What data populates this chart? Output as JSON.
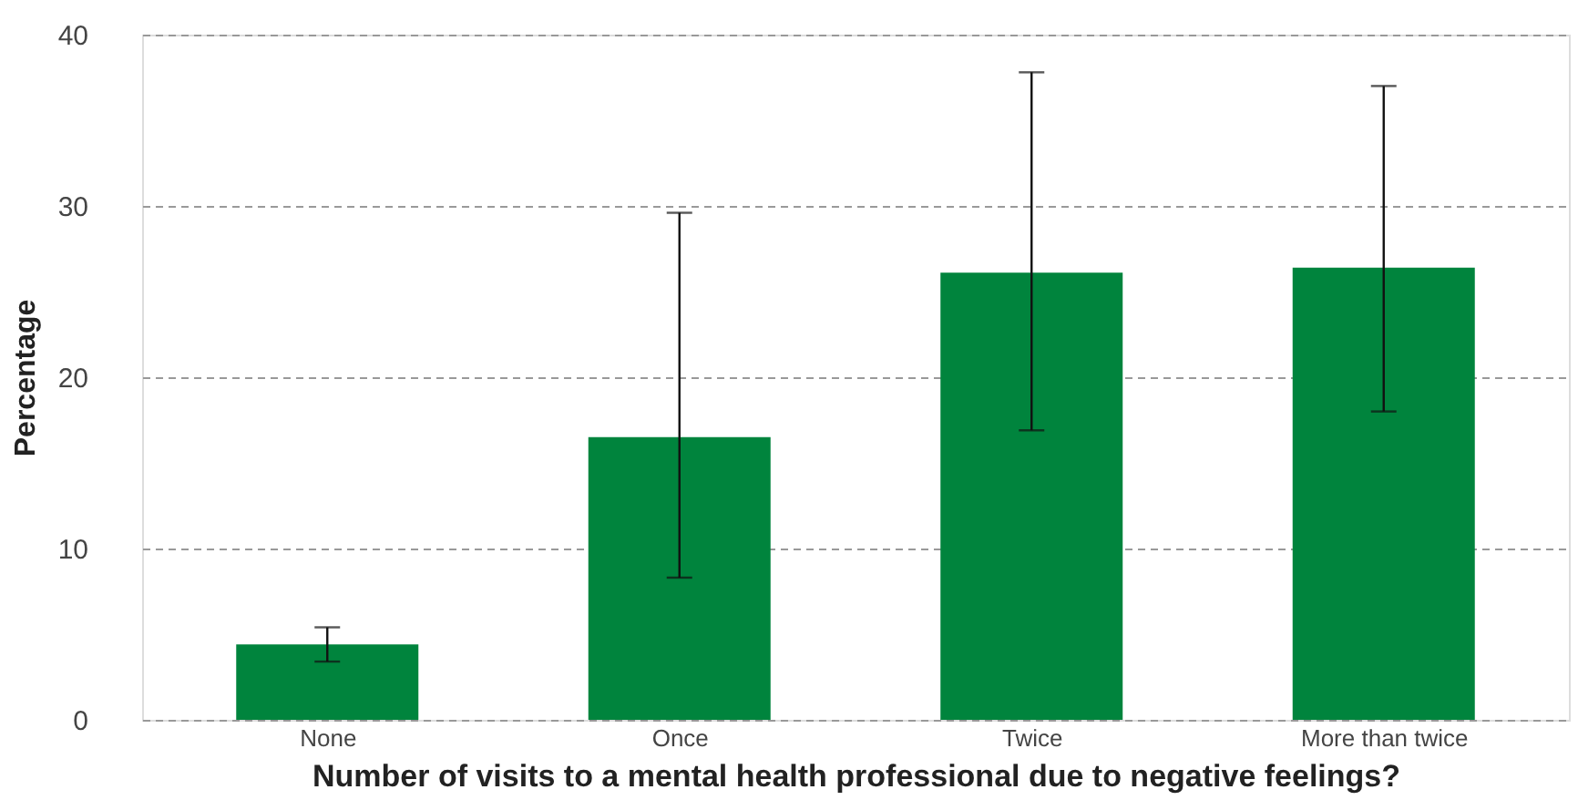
{
  "chart_data": {
    "type": "bar",
    "xlabel": "Number of visits to a mental health professional due to negative feelings?",
    "ylabel": "Percentage",
    "categories": [
      "None",
      "Once",
      "Twice",
      "More than twice"
    ],
    "values": [
      4.4,
      16.5,
      26.1,
      26.4
    ],
    "errors": [
      [
        3.4,
        5.4
      ],
      [
        8.3,
        29.6
      ],
      [
        16.9,
        37.8
      ],
      [
        18.0,
        37.0
      ]
    ],
    "color": "#00843d",
    "ylim": [
      0,
      40
    ],
    "yticks": [
      0,
      10,
      20,
      30,
      40
    ],
    "grid": "y"
  }
}
